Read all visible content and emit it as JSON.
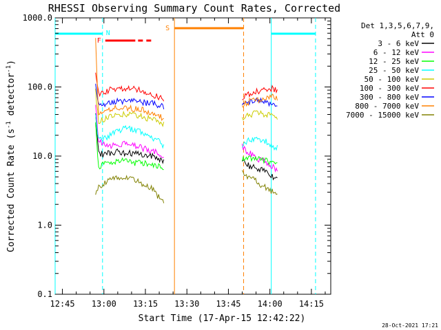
{
  "chart_data": {
    "type": "line",
    "title": "RHESSI Observing Summary Count Rates, Corrected",
    "xlabel": "Start Time (17-Apr-15 12:42:22)",
    "ylabel": "Corrected Count Rate (s⁻¹ detector⁻¹)",
    "ylabel_main": "Corrected Count Rate (s",
    "ylabel_sup1": "-1",
    "ylabel_mid": " detector",
    "ylabel_sup2": "-1",
    "ylabel_end": ")",
    "yscale": "log",
    "ylim": [
      0.1,
      1000
    ],
    "xlim": [
      "12:42:22",
      "14:22:00"
    ],
    "x_ticks": [
      "12:45",
      "13:00",
      "13:15",
      "13:30",
      "13:45",
      "14:00",
      "14:15"
    ],
    "y_ticks": [
      "0.1",
      "1.0",
      "10.0",
      "100.0",
      "1000.0"
    ],
    "y_tick_values": [
      0.1,
      1,
      10,
      100,
      1000
    ],
    "legend_header": [
      "Det 1,3,5,6,7,9,",
      "Att 0"
    ],
    "legend_position": "top-right, outside plot",
    "footer": "28-Oct-2021 17:21",
    "flags": {
      "night_label": "N",
      "flare_label": "F",
      "saa_label": "S",
      "night_intervals": [
        [
          "12:42:22",
          "12:59:30"
        ],
        [
          "14:00:30",
          "14:16:30"
        ]
      ],
      "flare_interval": [
        "13:00:30",
        "13:18:00"
      ],
      "saa_interval": [
        "13:25:30",
        "13:50:30"
      ]
    },
    "series": [
      {
        "name": "3 - 6 keV",
        "color": "#000000",
        "segment1": {
          "x": [
            "12:57",
            "12:58",
            "13:00",
            "13:02",
            "13:05",
            "13:08",
            "13:11",
            "13:14",
            "13:17",
            "13:20",
            "13:22"
          ],
          "y": [
            40,
            11,
            10.5,
            11,
            11.5,
            11,
            11,
            10.5,
            10,
            9,
            8.5
          ]
        },
        "segment2": {
          "x": [
            "13:50",
            "13:51",
            "13:53",
            "13:56",
            "13:59",
            "14:01",
            "14:03"
          ],
          "y": [
            9,
            8,
            7,
            6.5,
            6,
            5,
            4.5
          ]
        }
      },
      {
        "name": "6 - 12 keV",
        "color": "#ff00ff",
        "segment1": {
          "x": [
            "12:57",
            "12:58",
            "13:00",
            "13:02",
            "13:05",
            "13:08",
            "13:11",
            "13:14",
            "13:17",
            "13:20",
            "13:22"
          ],
          "y": [
            60,
            16,
            15,
            14,
            15,
            15,
            14,
            13,
            12,
            11,
            10
          ]
        },
        "segment2": {
          "x": [
            "13:50",
            "13:51",
            "13:53",
            "13:56",
            "13:59",
            "14:01",
            "14:03"
          ],
          "y": [
            14,
            12,
            11,
            9,
            8,
            7,
            6
          ]
        }
      },
      {
        "name": "12 - 25 keV",
        "color": "#00ff00",
        "segment1": {
          "x": [
            "12:57",
            "12:58",
            "13:00",
            "13:02",
            "13:05",
            "13:08",
            "13:11",
            "13:14",
            "13:17",
            "13:20",
            "13:22"
          ],
          "y": [
            30,
            7,
            7.5,
            8,
            8.5,
            8.5,
            8,
            8,
            7.5,
            7,
            6.5
          ]
        },
        "segment2": {
          "x": [
            "13:50",
            "13:51",
            "13:53",
            "13:56",
            "13:59",
            "14:01",
            "14:03"
          ],
          "y": [
            9,
            8.5,
            9.5,
            9,
            8.5,
            8,
            7.5
          ]
        }
      },
      {
        "name": "25 - 50 keV",
        "color": "#00ffff",
        "segment1": {
          "x": [
            "12:57",
            "12:58",
            "13:00",
            "13:02",
            "13:05",
            "13:08",
            "13:11",
            "13:14",
            "13:17",
            "13:20",
            "13:22"
          ],
          "y": [
            45,
            17,
            18,
            20,
            23,
            25,
            24,
            22,
            19,
            16,
            13
          ]
        },
        "segment2": {
          "x": [
            "13:50",
            "13:51",
            "13:53",
            "13:56",
            "13:59",
            "14:01",
            "14:03"
          ],
          "y": [
            14,
            16,
            17,
            17,
            16,
            14,
            13
          ]
        }
      },
      {
        "name": "50 - 100 keV",
        "color": "#cccc00",
        "segment1": {
          "x": [
            "12:57",
            "12:58",
            "13:00",
            "13:02",
            "13:05",
            "13:08",
            "13:11",
            "13:14",
            "13:17",
            "13:20",
            "13:22"
          ],
          "y": [
            90,
            32,
            34,
            37,
            40,
            40,
            39,
            37,
            34,
            31,
            28
          ]
        },
        "segment2": {
          "x": [
            "13:50",
            "13:51",
            "13:53",
            "13:56",
            "13:59",
            "14:01",
            "14:03"
          ],
          "y": [
            36,
            38,
            40,
            42,
            40,
            38,
            35
          ]
        }
      },
      {
        "name": "100 - 300 keV",
        "color": "#ff0000",
        "segment1": {
          "x": [
            "12:57",
            "12:58",
            "13:00",
            "13:02",
            "13:05",
            "13:08",
            "13:11",
            "13:14",
            "13:17",
            "13:20",
            "13:22"
          ],
          "y": [
            150,
            80,
            85,
            90,
            95,
            97,
            95,
            90,
            80,
            70,
            65
          ]
        },
        "segment2": {
          "x": [
            "13:50",
            "13:51",
            "13:53",
            "13:56",
            "13:59",
            "14:01",
            "14:03"
          ],
          "y": [
            60,
            72,
            80,
            88,
            92,
            95,
            90
          ]
        }
      },
      {
        "name": "300 - 800 keV",
        "color": "#0000ff",
        "segment1": {
          "x": [
            "12:57",
            "12:58",
            "13:00",
            "13:02",
            "13:05",
            "13:08",
            "13:11",
            "13:14",
            "13:17",
            "13:20",
            "13:22"
          ],
          "y": [
            120,
            55,
            57,
            60,
            62,
            63,
            62,
            60,
            58,
            55,
            52
          ]
        },
        "segment2": {
          "x": [
            "13:50",
            "13:51",
            "13:53",
            "13:56",
            "13:59",
            "14:01",
            "14:03"
          ],
          "y": [
            50,
            57,
            62,
            64,
            60,
            55,
            50
          ]
        }
      },
      {
        "name": "800 - 7000 keV",
        "color": "#ff8000",
        "segment1": {
          "x": [
            "12:57",
            "12:58",
            "13:00",
            "13:02",
            "13:05",
            "13:08",
            "13:11",
            "13:14",
            "13:17",
            "13:20",
            "13:22"
          ],
          "y": [
            500,
            42,
            44,
            47,
            50,
            50,
            48,
            46,
            42,
            38,
            35
          ]
        },
        "segment2": {
          "x": [
            "13:50",
            "13:51",
            "13:53",
            "13:56",
            "13:59",
            "14:01",
            "14:03"
          ],
          "y": [
            55,
            58,
            62,
            66,
            70,
            72,
            70
          ]
        }
      },
      {
        "name": "7000 - 15000 keV",
        "color": "#808000",
        "segment1": {
          "x": [
            "12:57",
            "12:58",
            "13:00",
            "13:02",
            "13:05",
            "13:08",
            "13:11",
            "13:14",
            "13:17",
            "13:20",
            "13:22"
          ],
          "y": [
            3,
            3.5,
            4,
            4.5,
            5,
            5,
            4.5,
            4,
            3.5,
            2.5,
            2
          ]
        },
        "segment2": {
          "x": [
            "13:50",
            "13:51",
            "13:53",
            "13:56",
            "13:59",
            "14:01",
            "14:03"
          ],
          "y": [
            6,
            5,
            5,
            4,
            3.5,
            3,
            2.5
          ]
        }
      }
    ]
  }
}
